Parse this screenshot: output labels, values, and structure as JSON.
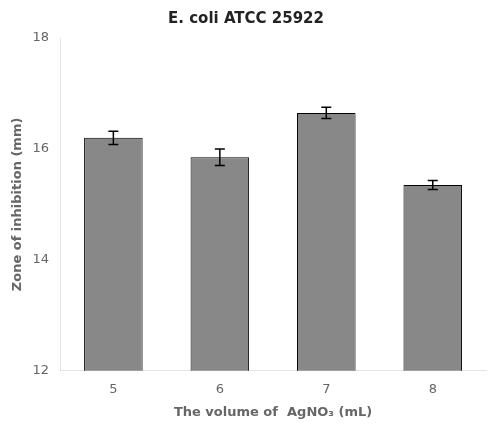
{
  "chart_data": {
    "type": "bar",
    "title": "E. coli ATCC 25922",
    "x_label": "The volume of  AgNO₃ (mL)",
    "y_label": "Zone of inhibition (mm)",
    "categories": [
      "5",
      "6",
      "7",
      "8"
    ],
    "values": [
      16.2,
      15.85,
      16.65,
      15.35
    ],
    "errors": [
      0.12,
      0.15,
      0.1,
      0.08
    ],
    "color": "#888888",
    "ylim": [
      12,
      18
    ],
    "yticks": [
      12,
      14,
      16,
      18
    ],
    "grid": false,
    "tick_labels": true
  }
}
